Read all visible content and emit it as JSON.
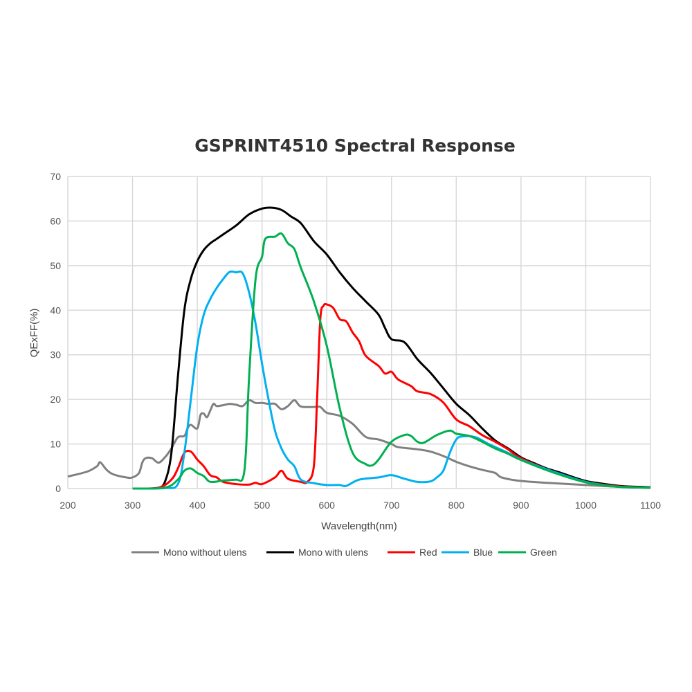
{
  "chart_data": {
    "type": "line",
    "title": "GSPRINT4510 Spectral Response",
    "xlabel": "Wavelength(nm)",
    "ylabel": "QExFF(%)",
    "xlim": [
      200,
      1100
    ],
    "ylim": [
      0,
      70
    ],
    "xticks": [
      200,
      300,
      400,
      500,
      600,
      700,
      800,
      900,
      1000,
      1100
    ],
    "yticks": [
      0,
      10,
      20,
      30,
      40,
      50,
      60,
      70
    ],
    "grid": true,
    "legend_position": "bottom",
    "series": [
      {
        "name": "Mono without ulens",
        "color": "#808080",
        "points": [
          [
            200,
            2.7
          ],
          [
            230,
            3.8
          ],
          [
            245,
            5
          ],
          [
            250,
            5.9
          ],
          [
            260,
            4.2
          ],
          [
            270,
            3.2
          ],
          [
            290,
            2.5
          ],
          [
            300,
            2.5
          ],
          [
            310,
            3.5
          ],
          [
            315,
            5.8
          ],
          [
            320,
            6.8
          ],
          [
            330,
            6.8
          ],
          [
            340,
            5.8
          ],
          [
            350,
            7
          ],
          [
            360,
            9
          ],
          [
            370,
            11.5
          ],
          [
            380,
            11.8
          ],
          [
            385,
            13.5
          ],
          [
            390,
            14.3
          ],
          [
            400,
            13.5
          ],
          [
            405,
            16.5
          ],
          [
            410,
            16.8
          ],
          [
            415,
            16
          ],
          [
            420,
            17.5
          ],
          [
            425,
            19
          ],
          [
            430,
            18.5
          ],
          [
            440,
            18.7
          ],
          [
            450,
            19
          ],
          [
            460,
            18.8
          ],
          [
            470,
            18.5
          ],
          [
            480,
            19.8
          ],
          [
            490,
            19.2
          ],
          [
            500,
            19.2
          ],
          [
            510,
            19
          ],
          [
            520,
            19
          ],
          [
            530,
            17.8
          ],
          [
            540,
            18.5
          ],
          [
            550,
            19.8
          ],
          [
            560,
            18.4
          ],
          [
            580,
            18.3
          ],
          [
            590,
            18.3
          ],
          [
            600,
            17
          ],
          [
            620,
            16.3
          ],
          [
            640,
            14.5
          ],
          [
            660,
            11.6
          ],
          [
            680,
            11
          ],
          [
            700,
            10
          ],
          [
            710,
            9.3
          ],
          [
            740,
            8.8
          ],
          [
            760,
            8.3
          ],
          [
            780,
            7.3
          ],
          [
            800,
            6
          ],
          [
            820,
            5
          ],
          [
            840,
            4.2
          ],
          [
            860,
            3.5
          ],
          [
            870,
            2.5
          ],
          [
            900,
            1.7
          ],
          [
            950,
            1.2
          ],
          [
            1000,
            0.8
          ],
          [
            1050,
            0.4
          ],
          [
            1100,
            0.2
          ]
        ]
      },
      {
        "name": "Mono with ulens",
        "color": "#000000",
        "points": [
          [
            340,
            0
          ],
          [
            350,
            1.5
          ],
          [
            360,
            8
          ],
          [
            370,
            25
          ],
          [
            380,
            40
          ],
          [
            390,
            47
          ],
          [
            400,
            51
          ],
          [
            410,
            53.5
          ],
          [
            420,
            55
          ],
          [
            430,
            56
          ],
          [
            440,
            57
          ],
          [
            460,
            59
          ],
          [
            480,
            61.5
          ],
          [
            500,
            62.8
          ],
          [
            515,
            63
          ],
          [
            530,
            62.5
          ],
          [
            545,
            61
          ],
          [
            560,
            59.5
          ],
          [
            580,
            55.5
          ],
          [
            600,
            52.5
          ],
          [
            620,
            48.5
          ],
          [
            640,
            45
          ],
          [
            660,
            42
          ],
          [
            680,
            39
          ],
          [
            690,
            36
          ],
          [
            700,
            33.5
          ],
          [
            720,
            32.8
          ],
          [
            740,
            29
          ],
          [
            760,
            26
          ],
          [
            780,
            22.5
          ],
          [
            800,
            19
          ],
          [
            820,
            16.5
          ],
          [
            840,
            13.5
          ],
          [
            860,
            10.8
          ],
          [
            880,
            9
          ],
          [
            900,
            7
          ],
          [
            920,
            5.7
          ],
          [
            940,
            4.5
          ],
          [
            960,
            3.6
          ],
          [
            980,
            2.6
          ],
          [
            1000,
            1.7
          ],
          [
            1020,
            1.2
          ],
          [
            1040,
            0.8
          ],
          [
            1060,
            0.5
          ],
          [
            1100,
            0.3
          ]
        ]
      },
      {
        "name": "Red",
        "color": "#ff0000",
        "points": [
          [
            300,
            0
          ],
          [
            340,
            0.2
          ],
          [
            360,
            2
          ],
          [
            370,
            4.5
          ],
          [
            380,
            8
          ],
          [
            390,
            8.3
          ],
          [
            400,
            6.5
          ],
          [
            410,
            5
          ],
          [
            420,
            3
          ],
          [
            430,
            2.5
          ],
          [
            440,
            1.5
          ],
          [
            460,
            1
          ],
          [
            480,
            0.9
          ],
          [
            490,
            1.3
          ],
          [
            500,
            1
          ],
          [
            520,
            2.5
          ],
          [
            530,
            4
          ],
          [
            540,
            2.2
          ],
          [
            560,
            1.5
          ],
          [
            570,
            1.5
          ],
          [
            580,
            5
          ],
          [
            585,
            20
          ],
          [
            590,
            38
          ],
          [
            595,
            41
          ],
          [
            600,
            41.3
          ],
          [
            610,
            40.5
          ],
          [
            620,
            38
          ],
          [
            630,
            37.5
          ],
          [
            640,
            35
          ],
          [
            650,
            33
          ],
          [
            660,
            29.8
          ],
          [
            680,
            27.5
          ],
          [
            690,
            25.8
          ],
          [
            700,
            26.2
          ],
          [
            710,
            24.5
          ],
          [
            730,
            23
          ],
          [
            740,
            21.8
          ],
          [
            760,
            21.2
          ],
          [
            780,
            19.3
          ],
          [
            800,
            15.5
          ],
          [
            820,
            14
          ],
          [
            840,
            12
          ],
          [
            860,
            10.5
          ],
          [
            880,
            8.8
          ],
          [
            900,
            6.8
          ],
          [
            950,
            3.8
          ],
          [
            1000,
            1.5
          ],
          [
            1050,
            0.5
          ],
          [
            1100,
            0.2
          ]
        ]
      },
      {
        "name": "Blue",
        "color": "#00b0f0",
        "points": [
          [
            300,
            0
          ],
          [
            350,
            0.1
          ],
          [
            370,
            1
          ],
          [
            380,
            8
          ],
          [
            390,
            20
          ],
          [
            400,
            32
          ],
          [
            410,
            39
          ],
          [
            420,
            42.5
          ],
          [
            430,
            45
          ],
          [
            440,
            47
          ],
          [
            450,
            48.6
          ],
          [
            460,
            48.5
          ],
          [
            470,
            48.3
          ],
          [
            480,
            44
          ],
          [
            490,
            37
          ],
          [
            500,
            28
          ],
          [
            510,
            20
          ],
          [
            520,
            13
          ],
          [
            530,
            9
          ],
          [
            540,
            6.5
          ],
          [
            550,
            5
          ],
          [
            560,
            2
          ],
          [
            580,
            1.2
          ],
          [
            600,
            0.8
          ],
          [
            620,
            0.8
          ],
          [
            630,
            0.6
          ],
          [
            650,
            2
          ],
          [
            680,
            2.5
          ],
          [
            700,
            3
          ],
          [
            720,
            2.2
          ],
          [
            740,
            1.5
          ],
          [
            760,
            1.6
          ],
          [
            770,
            2.5
          ],
          [
            780,
            4
          ],
          [
            790,
            8
          ],
          [
            800,
            11
          ],
          [
            810,
            11.7
          ],
          [
            830,
            11.5
          ],
          [
            850,
            10
          ],
          [
            880,
            8
          ],
          [
            900,
            6.5
          ],
          [
            950,
            3.8
          ],
          [
            1000,
            1.5
          ],
          [
            1050,
            0.4
          ],
          [
            1100,
            0.2
          ]
        ]
      },
      {
        "name": "Green",
        "color": "#00b050",
        "points": [
          [
            300,
            0
          ],
          [
            350,
            0.2
          ],
          [
            370,
            2
          ],
          [
            380,
            4
          ],
          [
            390,
            4.5
          ],
          [
            400,
            3.5
          ],
          [
            410,
            2.8
          ],
          [
            420,
            1.5
          ],
          [
            440,
            1.8
          ],
          [
            460,
            2
          ],
          [
            470,
            2.2
          ],
          [
            475,
            8
          ],
          [
            480,
            25
          ],
          [
            490,
            47
          ],
          [
            500,
            52
          ],
          [
            505,
            56
          ],
          [
            520,
            56.5
          ],
          [
            530,
            57.2
          ],
          [
            540,
            55
          ],
          [
            550,
            53.7
          ],
          [
            560,
            49.5
          ],
          [
            580,
            42
          ],
          [
            600,
            32
          ],
          [
            620,
            18
          ],
          [
            640,
            8
          ],
          [
            660,
            5.5
          ],
          [
            670,
            5.2
          ],
          [
            680,
            6.5
          ],
          [
            700,
            10.5
          ],
          [
            720,
            12
          ],
          [
            730,
            11.8
          ],
          [
            740,
            10.5
          ],
          [
            750,
            10.3
          ],
          [
            770,
            12
          ],
          [
            790,
            13
          ],
          [
            800,
            12.3
          ],
          [
            820,
            11.8
          ],
          [
            840,
            10.5
          ],
          [
            860,
            9
          ],
          [
            880,
            7.8
          ],
          [
            900,
            6.4
          ],
          [
            950,
            3.6
          ],
          [
            1000,
            1.4
          ],
          [
            1050,
            0.4
          ],
          [
            1100,
            0.2
          ]
        ]
      }
    ]
  }
}
